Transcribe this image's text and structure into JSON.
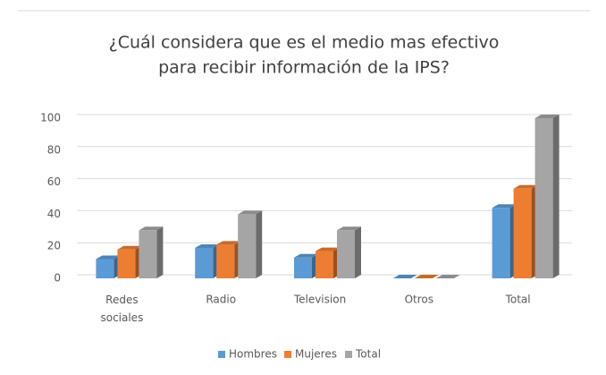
{
  "chart_data": {
    "type": "bar3d",
    "title": [
      "¿Cuál considera que es el medio mas efectivo",
      "para recibir información de la IPS?"
    ],
    "categories": [
      "Redes sociales",
      "Radio",
      "Television",
      "Otros",
      "Total"
    ],
    "series": [
      {
        "name": "Hombres",
        "color": "#5b9bd5",
        "values": [
          12,
          19,
          13,
          0,
          44
        ]
      },
      {
        "name": "Mujeres",
        "color": "#ed7d31",
        "values": [
          18,
          21,
          17,
          0,
          56
        ]
      },
      {
        "name": "Total",
        "color": "#a5a5a5",
        "values": [
          30,
          40,
          30,
          0,
          100
        ]
      }
    ],
    "ylim": [
      0,
      100
    ],
    "yticks": [
      0,
      20,
      40,
      60,
      80,
      100
    ],
    "grid": true,
    "legend": "bottom"
  }
}
